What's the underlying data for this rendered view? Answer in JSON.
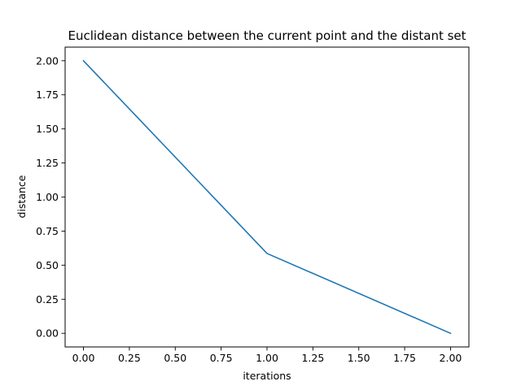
{
  "chart_data": {
    "type": "line",
    "title": "Euclidean distance between the current point and the distant set",
    "xlabel": "iterations",
    "ylabel": "distance",
    "x": [
      0,
      1,
      2
    ],
    "series": [
      {
        "values": [
          2.0,
          0.586,
          0.0
        ],
        "color": "#1f77b4"
      }
    ],
    "xlim": [
      -0.1,
      2.1
    ],
    "ylim": [
      -0.1,
      2.1
    ],
    "xticks": [
      0.0,
      0.25,
      0.5,
      0.75,
      1.0,
      1.25,
      1.5,
      1.75,
      2.0
    ],
    "xtick_labels": [
      "0.00",
      "0.25",
      "0.50",
      "0.75",
      "1.00",
      "1.25",
      "1.50",
      "1.75",
      "2.00"
    ],
    "yticks": [
      0.0,
      0.25,
      0.5,
      0.75,
      1.0,
      1.25,
      1.5,
      1.75,
      2.0
    ],
    "ytick_labels": [
      "0.00",
      "0.25",
      "0.50",
      "0.75",
      "1.00",
      "1.25",
      "1.50",
      "1.75",
      "2.00"
    ],
    "grid": false,
    "legend": "none"
  }
}
